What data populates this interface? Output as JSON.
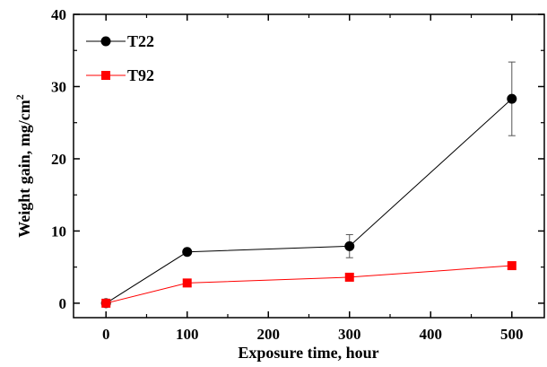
{
  "chart_data": {
    "type": "line",
    "xlabel": "Exposure time, hour",
    "ylabel_main": "Weight gain, mg/cm",
    "ylabel_sup": "2",
    "xlim": [
      -40,
      540
    ],
    "ylim": [
      -2,
      40
    ],
    "xticks": [
      0,
      100,
      200,
      300,
      400,
      500
    ],
    "yticks": [
      0,
      10,
      20,
      30,
      40
    ],
    "legend_position": "top-left",
    "series": [
      {
        "name": "T22",
        "color": "#000000",
        "marker": "circle",
        "x": [
          0,
          100,
          300,
          500
        ],
        "y": [
          0,
          7.1,
          7.9,
          28.3
        ],
        "yerr": [
          0,
          0,
          1.6,
          5.1
        ]
      },
      {
        "name": "T92",
        "color": "#ff0000",
        "marker": "square",
        "x": [
          0,
          100,
          300,
          500
        ],
        "y": [
          0,
          2.8,
          3.6,
          5.2
        ],
        "yerr": [
          0,
          0,
          0,
          0.5
        ]
      }
    ]
  }
}
